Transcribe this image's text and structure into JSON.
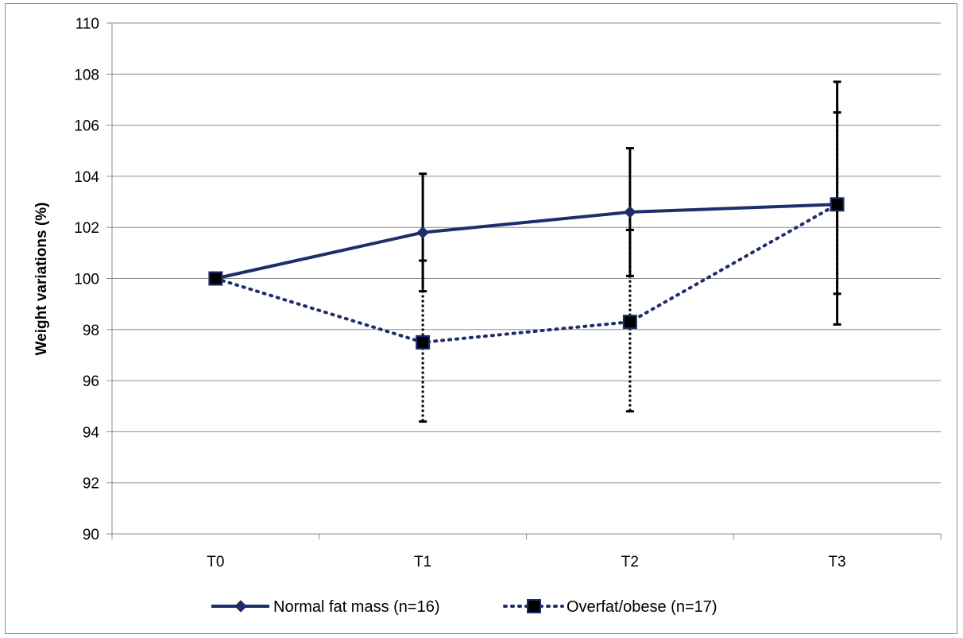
{
  "chart_data": {
    "type": "line",
    "categories": [
      "T0",
      "T1",
      "T2",
      "T3"
    ],
    "ylabel": "Weight variations (%)",
    "xlabel": "",
    "ylim": [
      90,
      110
    ],
    "ytick_step": 2,
    "grid": true,
    "legend_position": "bottom",
    "series": [
      {
        "name": "Normal fat mass (n=16)",
        "values": [
          100,
          101.8,
          102.6,
          102.9
        ],
        "error_low": [
          null,
          99.5,
          100.1,
          98.2
        ],
        "error_high": [
          null,
          104.1,
          105.1,
          107.7
        ],
        "color": "#1f2d6b",
        "line_style": "solid",
        "marker": "diamond"
      },
      {
        "name": "Overfat/obese (n=17)",
        "values": [
          100,
          97.5,
          98.3,
          102.9
        ],
        "error_low": [
          null,
          94.4,
          94.8,
          99.4
        ],
        "error_high": [
          null,
          100.7,
          101.9,
          106.5
        ],
        "color": "#1f2d6b",
        "line_style": "dotted",
        "marker": "square"
      }
    ]
  }
}
